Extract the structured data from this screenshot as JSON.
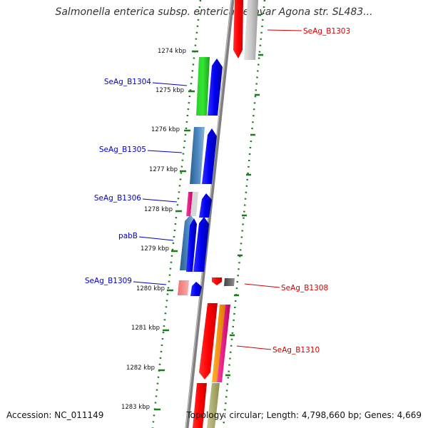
{
  "title": "Salmonella enterica subsp. enterica serovar Agona str. SL483...",
  "footer": {
    "accession": "Accession: NC_011149",
    "topology": "Topology: circular; Length: 4,798,660 bp; Genes: 4,669"
  },
  "colors": {
    "backbone": "#7f7f7f",
    "tick": "#1e7a1e",
    "forward_label": "#0000c8",
    "reverse_label": "#d20000"
  },
  "ticks": [
    "1274 kbp",
    "1275 kbp",
    "1276 kbp",
    "1277 kbp",
    "1278 kbp",
    "1279 kbp",
    "1280 kbp",
    "1281 kbp",
    "1282 kbp",
    "1283 kbp"
  ],
  "gene_labels": [
    {
      "text": "SeAg_B1303",
      "strand": "reverse"
    },
    {
      "text": "SeAg_B1304",
      "strand": "forward"
    },
    {
      "text": "SeAg_B1305",
      "strand": "forward"
    },
    {
      "text": "SeAg_B1306",
      "strand": "forward"
    },
    {
      "text": "pabB",
      "strand": "forward"
    },
    {
      "text": "SeAg_B1309",
      "strand": "forward"
    },
    {
      "text": "SeAg_B1308",
      "strand": "reverse"
    },
    {
      "text": "SeAg_B1310",
      "strand": "reverse"
    }
  ]
}
